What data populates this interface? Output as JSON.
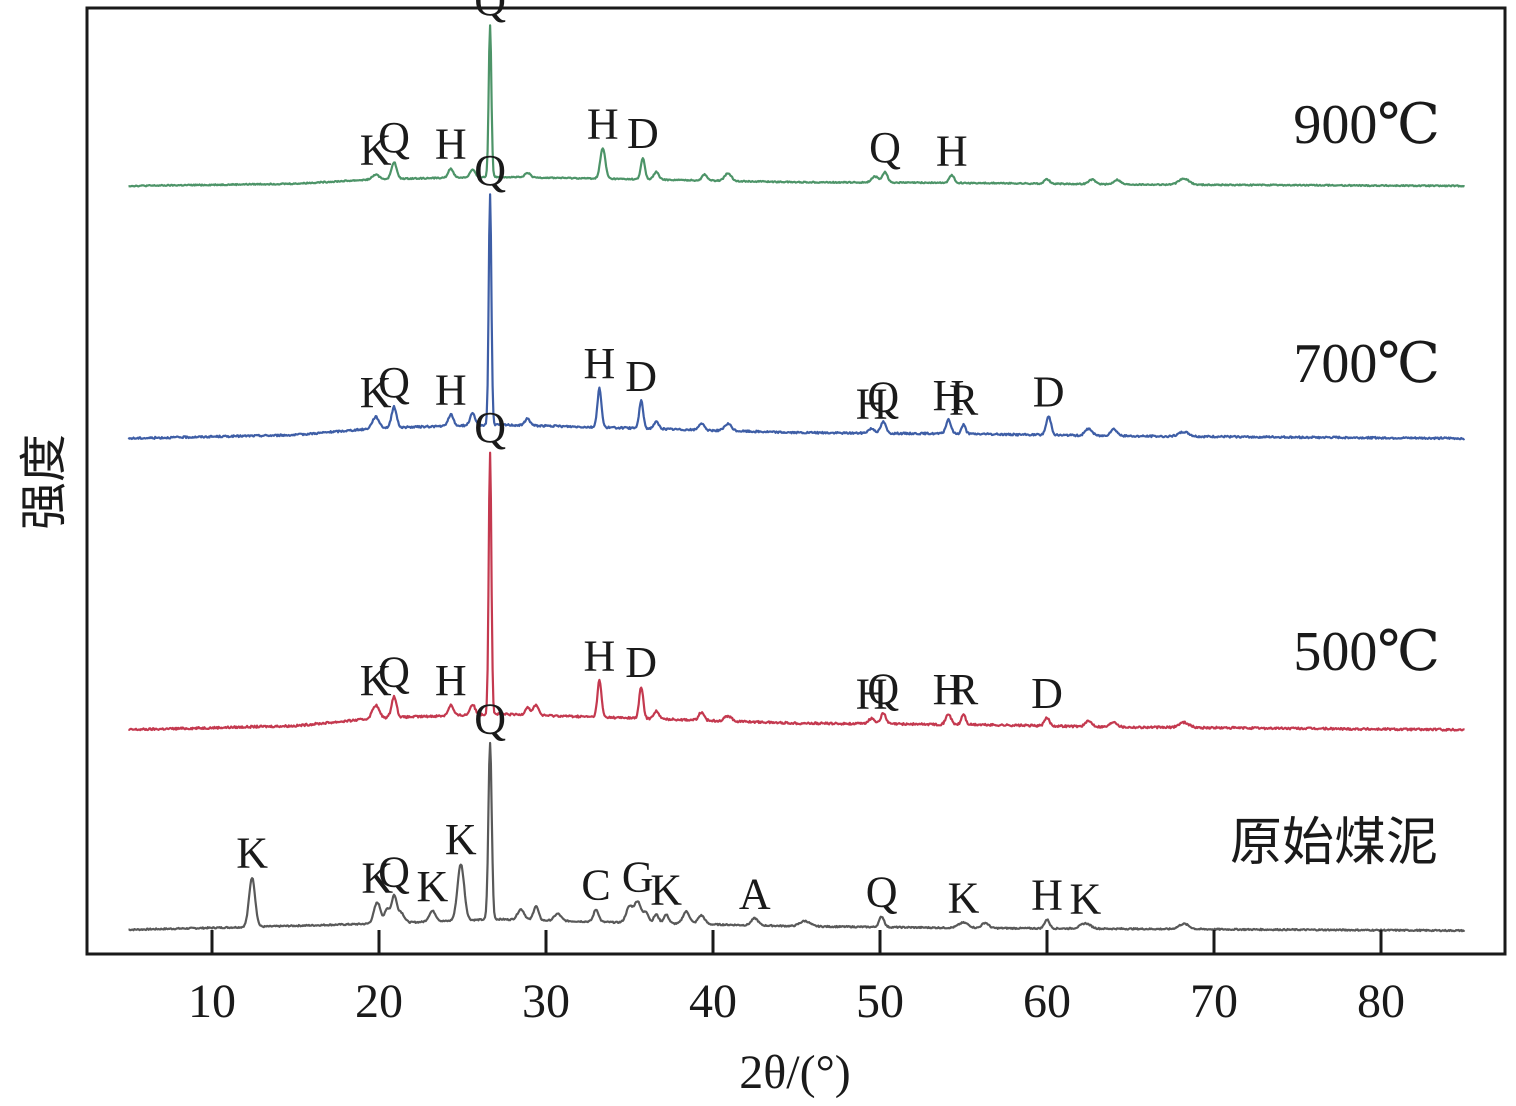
{
  "chart_data": {
    "type": "line",
    "xlabel": "2θ/(°)",
    "ylabel": "强度",
    "xlim": [
      2.5,
      87.5
    ],
    "xticks": [
      10,
      20,
      30,
      40,
      50,
      60,
      70,
      80
    ],
    "xtick_labels": [
      "10",
      "20",
      "30",
      "40",
      "50",
      "60",
      "70",
      "80"
    ],
    "y_axis": "no tick labels; curves offset vertically, relative intensity 0–100 per curve",
    "grid": false,
    "series": [
      {
        "name": "原始煤泥",
        "color": "#595959",
        "baseline": [
          [
            5,
            3.0
          ],
          [
            12,
            4.5
          ],
          [
            20,
            6.5
          ],
          [
            27,
            9.0
          ],
          [
            35,
            7.0
          ],
          [
            45,
            5.0
          ],
          [
            55,
            4.0
          ],
          [
            65,
            3.5
          ],
          [
            75,
            3.0
          ],
          [
            85,
            2.5
          ]
        ],
        "peaks": [
          {
            "x": 12.4,
            "y": 28,
            "w": 0.18,
            "label": "K"
          },
          {
            "x": 19.9,
            "y": 12,
            "w": 0.2,
            "label": "K"
          },
          {
            "x": 20.5,
            "y": 8,
            "w": 0.15
          },
          {
            "x": 20.9,
            "y": 15,
            "w": 0.15,
            "label": "Q"
          },
          {
            "x": 21.3,
            "y": 6,
            "w": 0.2
          },
          {
            "x": 23.2,
            "y": 6,
            "w": 0.2,
            "label": "K"
          },
          {
            "x": 24.9,
            "y": 32,
            "w": 0.2,
            "label": "K"
          },
          {
            "x": 26.65,
            "y": 100,
            "w": 0.1,
            "label": "Q"
          },
          {
            "x": 28.5,
            "y": 6,
            "w": 0.2
          },
          {
            "x": 29.4,
            "y": 8,
            "w": 0.15
          },
          {
            "x": 30.7,
            "y": 4,
            "w": 0.2
          },
          {
            "x": 33.0,
            "y": 7,
            "w": 0.15,
            "label": "C"
          },
          {
            "x": 35.0,
            "y": 9,
            "w": 0.2
          },
          {
            "x": 35.5,
            "y": 12,
            "w": 0.2,
            "label": "G"
          },
          {
            "x": 36.0,
            "y": 6,
            "w": 0.15
          },
          {
            "x": 36.6,
            "y": 5,
            "w": 0.15
          },
          {
            "x": 37.2,
            "y": 5,
            "w": 0.15,
            "label": "K"
          },
          {
            "x": 38.4,
            "y": 7,
            "w": 0.2
          },
          {
            "x": 39.3,
            "y": 5,
            "w": 0.2
          },
          {
            "x": 42.5,
            "y": 4,
            "w": 0.2,
            "label": "A"
          },
          {
            "x": 45.5,
            "y": 3,
            "w": 0.3
          },
          {
            "x": 50.1,
            "y": 6,
            "w": 0.15,
            "label": "Q"
          },
          {
            "x": 55.0,
            "y": 3,
            "w": 0.3,
            "label": "K"
          },
          {
            "x": 56.3,
            "y": 3,
            "w": 0.2
          },
          {
            "x": 60.0,
            "y": 5,
            "w": 0.15,
            "label": "H"
          },
          {
            "x": 62.3,
            "y": 3,
            "w": 0.3,
            "label": "K"
          },
          {
            "x": 68.2,
            "y": 3,
            "w": 0.3
          }
        ]
      },
      {
        "name": "500℃",
        "color": "#c4394f",
        "baseline": [
          [
            5,
            2.0
          ],
          [
            15,
            3.5
          ],
          [
            20,
            6.5
          ],
          [
            27,
            8.0
          ],
          [
            35,
            6.5
          ],
          [
            45,
            4.5
          ],
          [
            55,
            4.0
          ],
          [
            65,
            3.0
          ],
          [
            75,
            2.5
          ],
          [
            85,
            2.0
          ]
        ],
        "peaks": [
          {
            "x": 19.8,
            "y": 5,
            "w": 0.2,
            "label": "K"
          },
          {
            "x": 20.9,
            "y": 8,
            "w": 0.15,
            "label": "Q"
          },
          {
            "x": 24.3,
            "y": 4,
            "w": 0.15,
            "label": "H"
          },
          {
            "x": 25.6,
            "y": 4,
            "w": 0.15
          },
          {
            "x": 26.65,
            "y": 100,
            "w": 0.08,
            "label": "Q"
          },
          {
            "x": 28.9,
            "y": 3,
            "w": 0.15
          },
          {
            "x": 29.4,
            "y": 4,
            "w": 0.15
          },
          {
            "x": 33.2,
            "y": 14,
            "w": 0.12,
            "label": "H"
          },
          {
            "x": 35.7,
            "y": 12,
            "w": 0.12,
            "label": "D"
          },
          {
            "x": 36.6,
            "y": 3,
            "w": 0.15
          },
          {
            "x": 39.3,
            "y": 3,
            "w": 0.15
          },
          {
            "x": 40.9,
            "y": 2,
            "w": 0.2
          },
          {
            "x": 49.5,
            "y": 2,
            "w": 0.2,
            "label": "H"
          },
          {
            "x": 50.2,
            "y": 4,
            "w": 0.15,
            "label": "Q"
          },
          {
            "x": 54.1,
            "y": 4,
            "w": 0.15,
            "label": "H"
          },
          {
            "x": 55.0,
            "y": 4,
            "w": 0.12,
            "label": "R"
          },
          {
            "x": 60.0,
            "y": 3,
            "w": 0.15,
            "label": "D"
          },
          {
            "x": 62.5,
            "y": 2,
            "w": 0.2
          },
          {
            "x": 64.0,
            "y": 2,
            "w": 0.2
          },
          {
            "x": 68.2,
            "y": 2,
            "w": 0.3
          }
        ]
      },
      {
        "name": "700℃",
        "color": "#3e5ea6",
        "baseline": [
          [
            5,
            2.0
          ],
          [
            15,
            3.5
          ],
          [
            20,
            6.5
          ],
          [
            27,
            8.0
          ],
          [
            35,
            6.5
          ],
          [
            45,
            4.5
          ],
          [
            55,
            4.0
          ],
          [
            65,
            3.0
          ],
          [
            75,
            2.5
          ],
          [
            85,
            2.0
          ]
        ],
        "peaks": [
          {
            "x": 19.8,
            "y": 5,
            "w": 0.2,
            "label": "K"
          },
          {
            "x": 20.9,
            "y": 9,
            "w": 0.15,
            "label": "Q"
          },
          {
            "x": 24.3,
            "y": 5,
            "w": 0.15,
            "label": "H"
          },
          {
            "x": 25.6,
            "y": 5,
            "w": 0.15
          },
          {
            "x": 26.65,
            "y": 100,
            "w": 0.08,
            "label": "Q"
          },
          {
            "x": 28.9,
            "y": 3,
            "w": 0.15
          },
          {
            "x": 33.2,
            "y": 17,
            "w": 0.12,
            "label": "H"
          },
          {
            "x": 35.7,
            "y": 12,
            "w": 0.12,
            "label": "D"
          },
          {
            "x": 36.6,
            "y": 3,
            "w": 0.15
          },
          {
            "x": 39.3,
            "y": 3,
            "w": 0.15
          },
          {
            "x": 40.9,
            "y": 3,
            "w": 0.2
          },
          {
            "x": 49.5,
            "y": 2,
            "w": 0.2,
            "label": "H"
          },
          {
            "x": 50.2,
            "y": 5,
            "w": 0.15,
            "label": "Q"
          },
          {
            "x": 54.1,
            "y": 6,
            "w": 0.15,
            "label": "H"
          },
          {
            "x": 55.0,
            "y": 4,
            "w": 0.12,
            "label": "R"
          },
          {
            "x": 60.1,
            "y": 8,
            "w": 0.15,
            "label": "D"
          },
          {
            "x": 62.5,
            "y": 3,
            "w": 0.2
          },
          {
            "x": 64.0,
            "y": 3,
            "w": 0.2
          },
          {
            "x": 68.2,
            "y": 2,
            "w": 0.3
          }
        ]
      },
      {
        "name": "900℃",
        "color": "#4d9468",
        "baseline": [
          [
            5,
            2.0
          ],
          [
            15,
            3.5
          ],
          [
            20,
            6.5
          ],
          [
            27,
            8.0
          ],
          [
            35,
            6.5
          ],
          [
            45,
            4.5
          ],
          [
            55,
            4.0
          ],
          [
            65,
            3.0
          ],
          [
            75,
            2.5
          ],
          [
            85,
            2.0
          ]
        ],
        "peaks": [
          {
            "x": 19.8,
            "y": 3,
            "w": 0.2,
            "label": "K"
          },
          {
            "x": 20.9,
            "y": 11,
            "w": 0.15,
            "label": "Q"
          },
          {
            "x": 24.3,
            "y": 6,
            "w": 0.15,
            "label": "H"
          },
          {
            "x": 25.6,
            "y": 5,
            "w": 0.15
          },
          {
            "x": 26.65,
            "y": 100,
            "w": 0.08,
            "label": "Q"
          },
          {
            "x": 28.9,
            "y": 3,
            "w": 0.15
          },
          {
            "x": 33.4,
            "y": 20,
            "w": 0.15,
            "label": "H"
          },
          {
            "x": 35.8,
            "y": 14,
            "w": 0.12,
            "label": "D"
          },
          {
            "x": 36.6,
            "y": 5,
            "w": 0.15
          },
          {
            "x": 39.5,
            "y": 4,
            "w": 0.15
          },
          {
            "x": 40.9,
            "y": 5,
            "w": 0.2
          },
          {
            "x": 49.7,
            "y": 4,
            "w": 0.2
          },
          {
            "x": 50.3,
            "y": 7,
            "w": 0.15,
            "label": "Q"
          },
          {
            "x": 54.3,
            "y": 5,
            "w": 0.15,
            "label": "H"
          },
          {
            "x": 60.0,
            "y": 3,
            "w": 0.15
          },
          {
            "x": 62.7,
            "y": 3,
            "w": 0.2
          },
          {
            "x": 64.2,
            "y": 3,
            "w": 0.2
          },
          {
            "x": 68.2,
            "y": 4,
            "w": 0.3
          }
        ]
      }
    ]
  }
}
